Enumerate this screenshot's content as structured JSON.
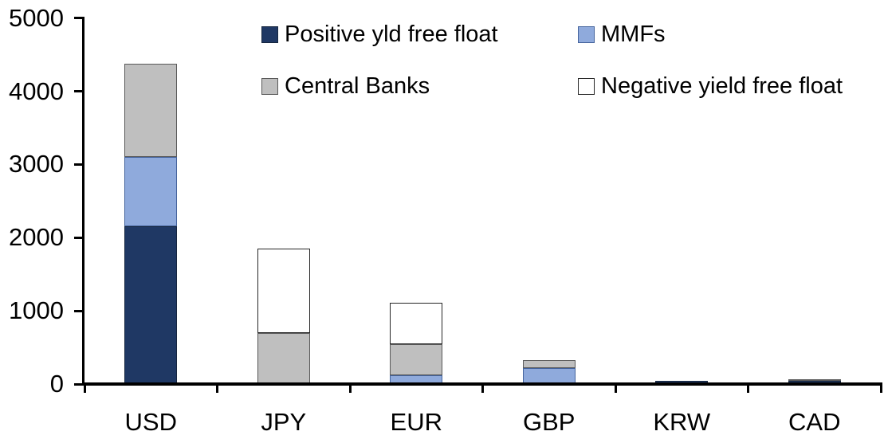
{
  "chart_data": {
    "type": "bar",
    "stacked": true,
    "title": "",
    "xlabel": "",
    "ylabel": "",
    "categories": [
      "USD",
      "JPY",
      "EUR",
      "GBP",
      "KRW",
      "CAD"
    ],
    "series": [
      {
        "name": "Positive yld free float",
        "color": "#1f3864",
        "border": "#16263f",
        "values": [
          2160,
          0,
          0,
          0,
          45,
          40
        ]
      },
      {
        "name": "MMFs",
        "color": "#8faadc",
        "border": "#44639c",
        "values": [
          940,
          0,
          115,
          215,
          0,
          0
        ]
      },
      {
        "name": "Central Banks",
        "color": "#bfbfbf",
        "border": "#595959",
        "values": [
          1280,
          700,
          430,
          115,
          0,
          25
        ]
      },
      {
        "name": "Negative yield free float",
        "color": "#ffffff",
        "border": "#262626",
        "values": [
          0,
          1150,
          565,
          0,
          0,
          0
        ]
      }
    ],
    "totals": {
      "USD": 4380,
      "JPY": 1850,
      "EUR": 1110,
      "GBP": 330,
      "KRW": 45,
      "CAD": 65
    },
    "ylim": [
      0,
      5000
    ],
    "yticks": [
      0,
      1000,
      2000,
      3000,
      4000,
      5000
    ],
    "grid": false,
    "legend_position": "top",
    "legend_rows": [
      [
        "Positive yld free float",
        "MMFs"
      ],
      [
        "Central Banks",
        "Negative yield free float"
      ]
    ]
  },
  "layout_text": {
    "y_tick_labels": [
      "0",
      "1000",
      "2000",
      "3000",
      "4000",
      "5000"
    ],
    "x_tick_labels": [
      "USD",
      "JPY",
      "EUR",
      "GBP",
      "KRW",
      "CAD"
    ]
  }
}
